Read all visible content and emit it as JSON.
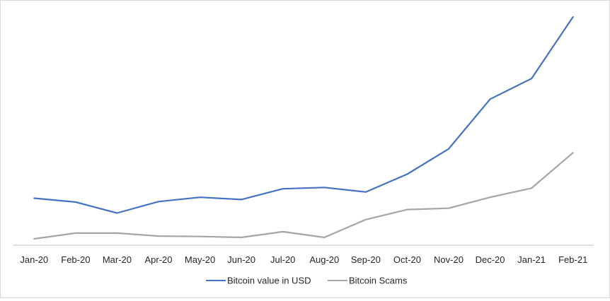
{
  "chart_data": {
    "type": "line",
    "categories": [
      "Jan-20",
      "Feb-20",
      "Mar-20",
      "Apr-20",
      "May-20",
      "Jun-20",
      "Jul-20",
      "Aug-20",
      "Sep-20",
      "Oct-20",
      "Nov-20",
      "Dec-20",
      "Jan-21",
      "Feb-21"
    ],
    "series": [
      {
        "name": "Bitcoin value in USD",
        "color": "#4472c4",
        "values": [
          20.6,
          18.9,
          14.1,
          19.1,
          21.0,
          20.0,
          24.7,
          25.3,
          23.3,
          31.1,
          42.2,
          64.0,
          73.0,
          100.0
        ]
      },
      {
        "name": "Bitcoin Scams",
        "color": "#a5a5a5",
        "values": [
          2.8,
          5.3,
          5.3,
          4.0,
          3.8,
          3.4,
          5.9,
          3.4,
          11.2,
          15.6,
          16.2,
          21.0,
          25.0,
          40.5
        ]
      }
    ],
    "ylim": [
      0,
      100
    ],
    "grid": false,
    "legend": "bottom",
    "y_axis_shown": false,
    "xlabel": "",
    "ylabel": ""
  }
}
